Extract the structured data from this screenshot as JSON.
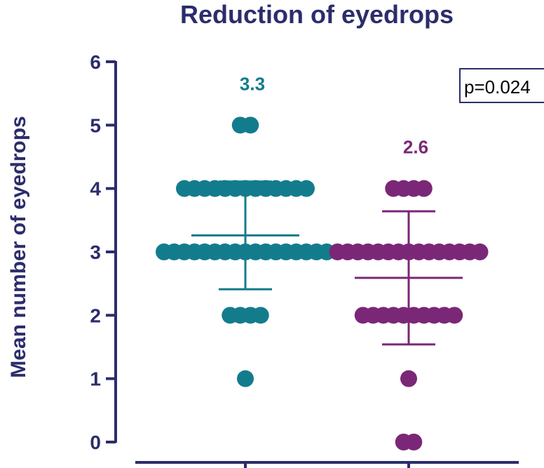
{
  "chart_data": {
    "type": "scatter",
    "title": "Reduction of eyedrops",
    "xlabel": "",
    "ylabel": "Mean number of eyedrops",
    "ylim": [
      0,
      6
    ],
    "yticks": [
      "0",
      "1",
      "2",
      "3",
      "4",
      "5",
      "6"
    ],
    "grid": false,
    "annotation": "p=0.024",
    "series": [
      {
        "color": "#137c8c",
        "mean": 3.26,
        "mean_label": "3.3",
        "sd_low": 2.41,
        "sd_high": 4.11,
        "values": [
          5,
          5,
          4,
          4,
          4,
          4,
          4,
          4,
          4,
          4,
          4,
          4,
          4,
          4,
          4,
          3,
          3,
          3,
          3,
          3,
          3,
          3,
          3,
          3,
          3,
          3,
          3,
          3,
          3,
          3,
          3,
          3,
          2,
          2,
          2,
          2,
          1
        ]
      },
      {
        "color": "#7b2777",
        "mean": 2.59,
        "mean_label": "2.6",
        "sd_low": 1.54,
        "sd_high": 3.64,
        "values": [
          4,
          4,
          4,
          4,
          3,
          3,
          3,
          3,
          3,
          3,
          3,
          3,
          3,
          3,
          3,
          3,
          3,
          3,
          3,
          2,
          2,
          2,
          2,
          2,
          2,
          2,
          2,
          2,
          2,
          1,
          0,
          0
        ]
      }
    ]
  }
}
